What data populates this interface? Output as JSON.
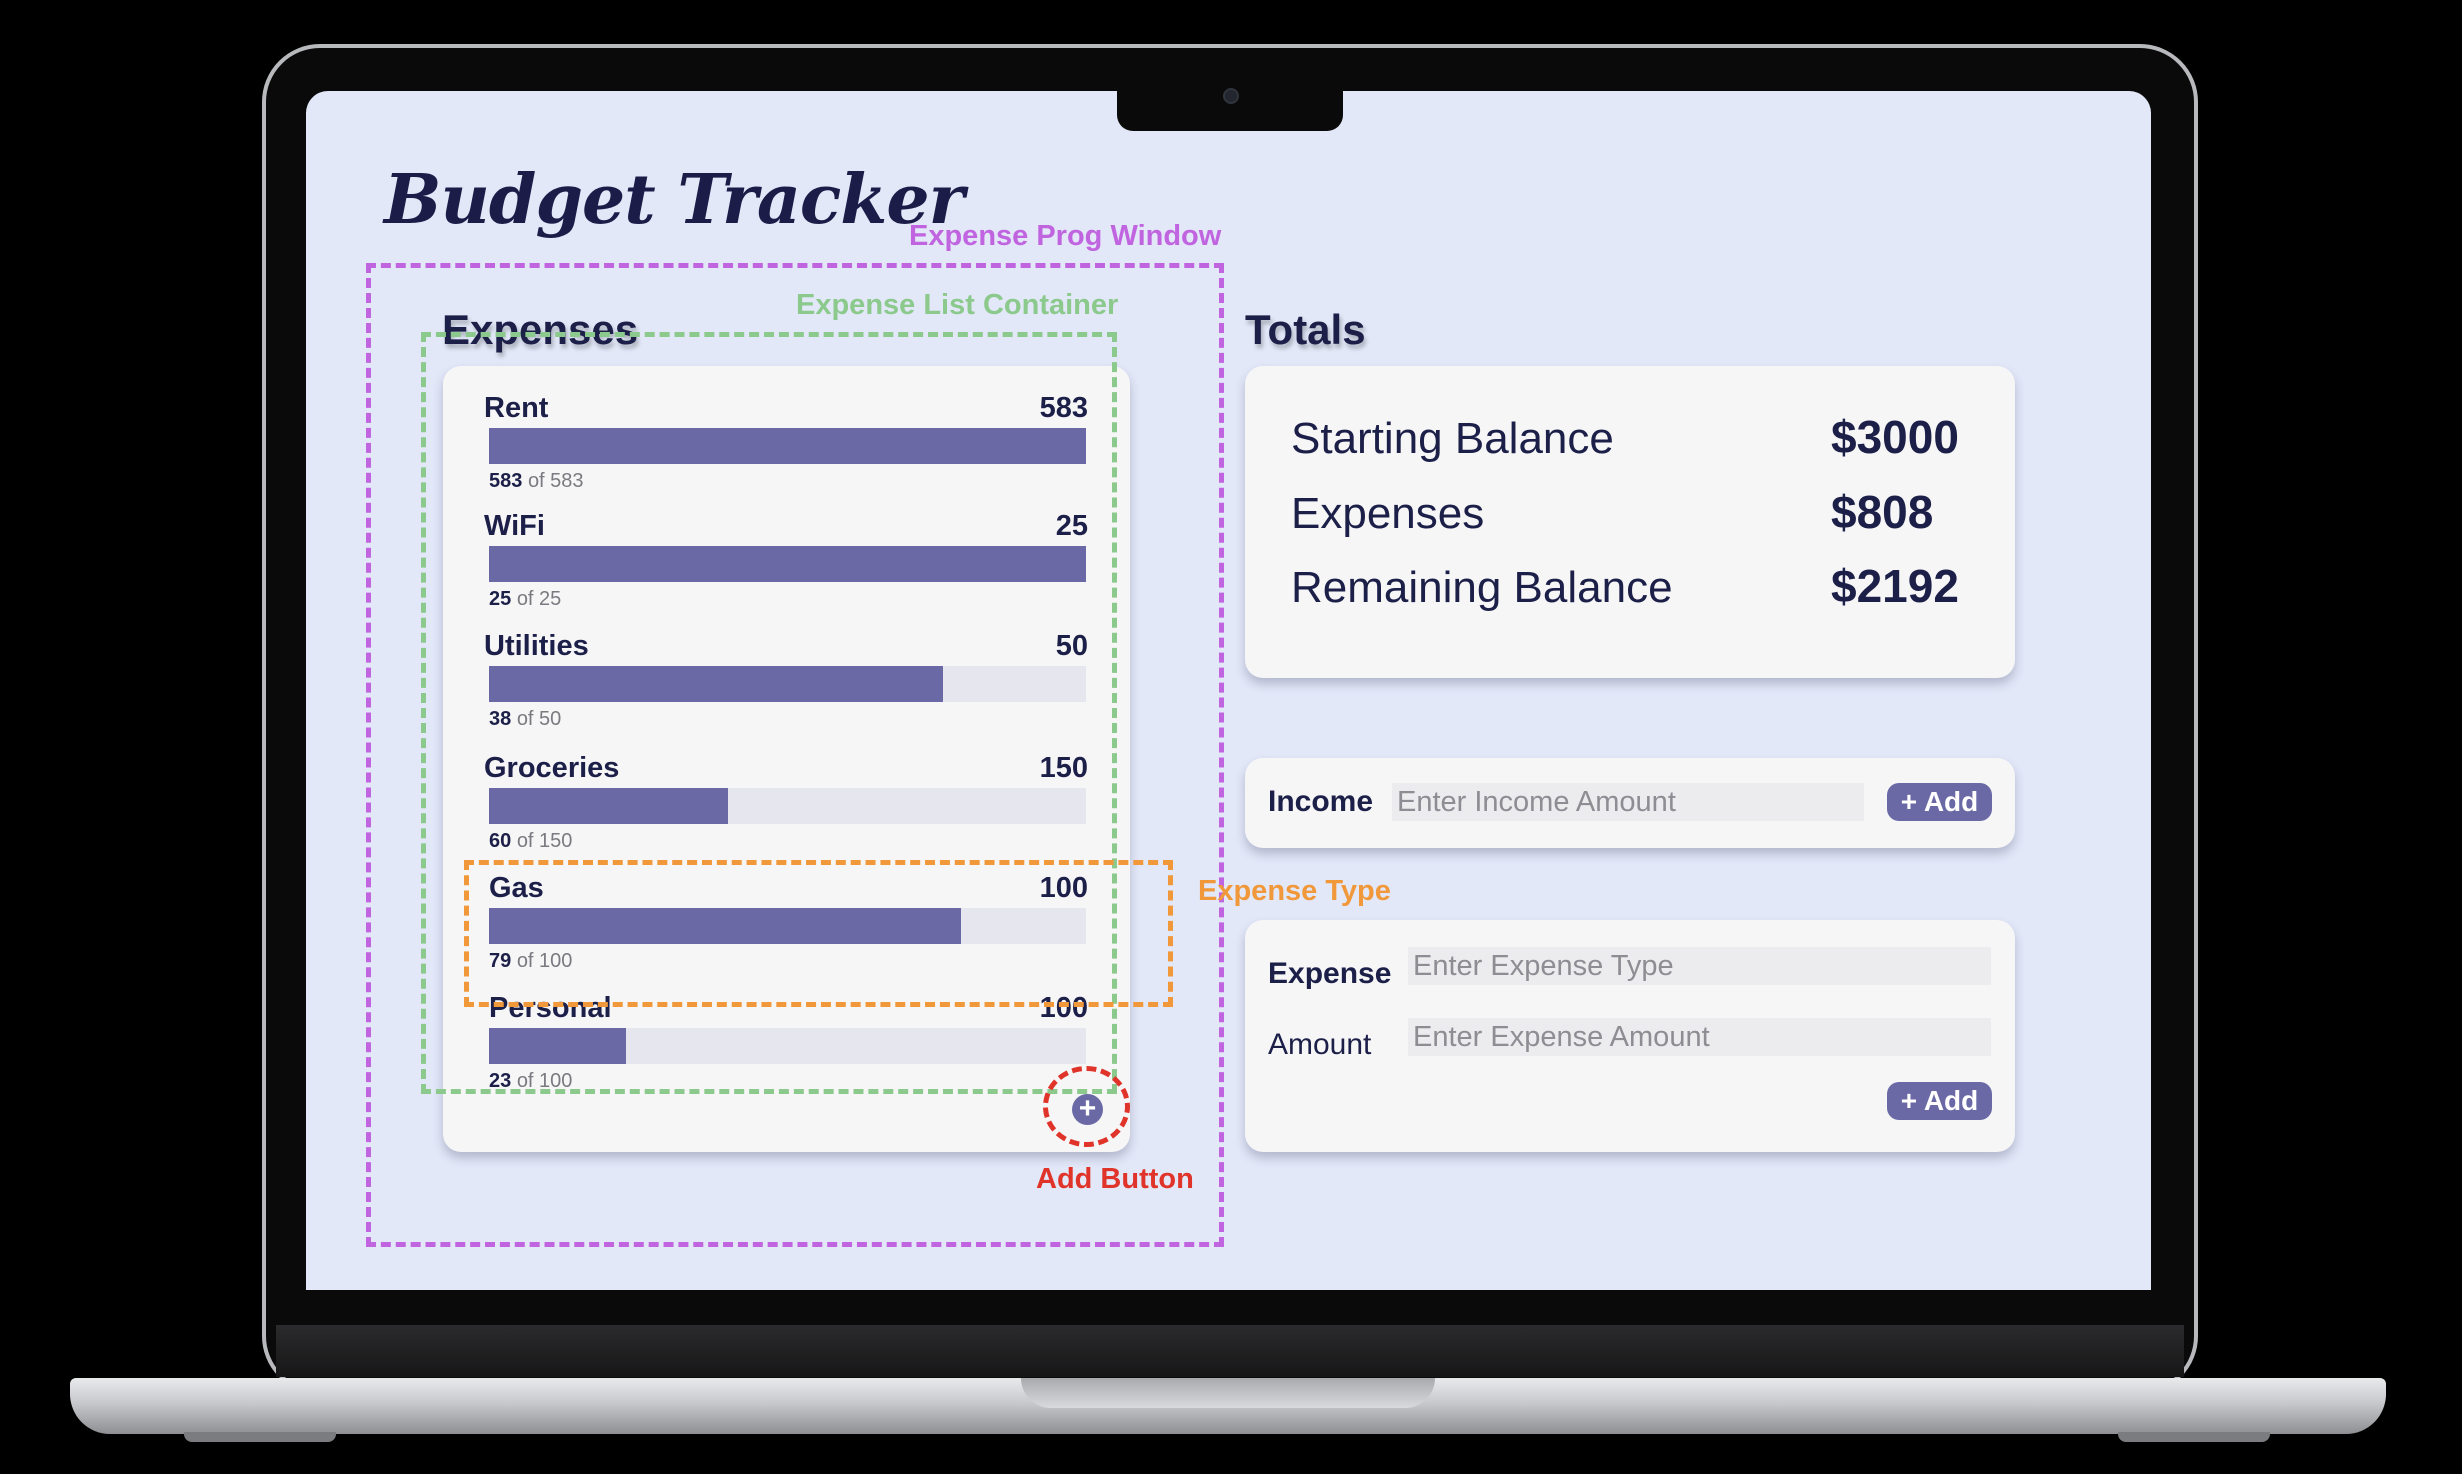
{
  "app": {
    "title": "Budget Tracker"
  },
  "expenses": {
    "title": "Expenses",
    "items": [
      {
        "name": "Rent",
        "max": "583",
        "spent": "583",
        "of_text": "of 583",
        "progress": 1.0
      },
      {
        "name": "WiFi",
        "max": "25",
        "spent": "25",
        "of_text": "of 25",
        "progress": 1.0
      },
      {
        "name": "Utilities",
        "max": "50",
        "spent": "38",
        "of_text": "of 50",
        "progress": 0.76
      },
      {
        "name": "Groceries",
        "max": "150",
        "spent": "60",
        "of_text": "of 150",
        "progress": 0.4
      },
      {
        "name": "Gas",
        "max": "100",
        "spent": "79",
        "of_text": "of 100",
        "progress": 0.79
      },
      {
        "name": "Personal",
        "max": "100",
        "spent": "23",
        "of_text": "of 100",
        "progress": 0.23
      }
    ],
    "add_icon": "plus-icon",
    "add_symbol": "+"
  },
  "totals": {
    "title": "Totals",
    "starting_balance": {
      "label": "Starting Balance",
      "value": "$3000"
    },
    "expenses": {
      "label": "Expenses",
      "value": "$808"
    },
    "remaining_balance": {
      "label": "Remaining Balance",
      "value": "$2192"
    }
  },
  "income_form": {
    "label": "Income",
    "placeholder": "Enter Income Amount",
    "add_label": "+ Add"
  },
  "expense_form": {
    "type_label": "Expense",
    "type_placeholder": "Enter Expense Type",
    "amount_label": "Amount",
    "amount_placeholder": "Enter Expense Amount",
    "add_label": "+ Add"
  },
  "annotations": {
    "expense_prog_window": "Expense Prog Window",
    "expense_list_container": "Expense List Container",
    "expense_type": "Expense Type",
    "add_button": "Add Button"
  },
  "colors": {
    "background": "#e2e8f8",
    "bar_fill": "#6a69a6",
    "bar_track": "#e6e6ef",
    "text_dark": "#1c1f48",
    "annotation_purple": "#c064e0",
    "annotation_green": "#8cc98c",
    "annotation_orange": "#f0983a",
    "annotation_red": "#e0342a"
  }
}
